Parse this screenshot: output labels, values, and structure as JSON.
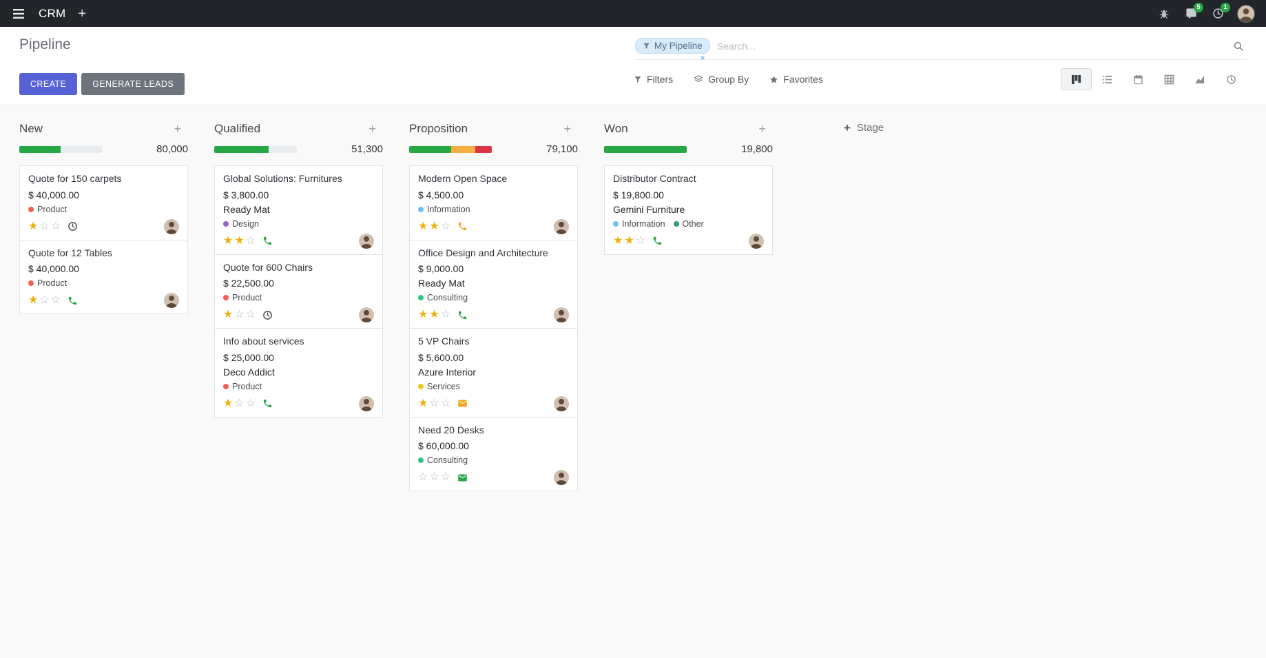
{
  "navbar": {
    "app_name": "CRM",
    "add_label": "+",
    "messages_badge": "5",
    "activities_badge": "1",
    "icons": [
      "hamburger-icon",
      "bug-icon",
      "messages-icon",
      "activities-clock-icon",
      "user-avatar"
    ]
  },
  "control_panel": {
    "title": "Pipeline",
    "create_label": "CREATE",
    "generate_leads_label": "GENERATE LEADS",
    "search": {
      "facet": "My Pipeline",
      "facet_remove": "×",
      "placeholder": "Search..."
    },
    "filters_label": "Filters",
    "group_by_label": "Group By",
    "favorites_label": "Favorites",
    "view_switcher": {
      "active": "kanban",
      "views": [
        "kanban",
        "list",
        "calendar",
        "pivot",
        "graph",
        "activity"
      ]
    }
  },
  "colors": {
    "accent": "#5661d6",
    "success": "#28a745",
    "warning": "#f5ae42",
    "danger": "#dc3545",
    "star_filled": "#edb009"
  },
  "board": {
    "add_stage_label": "Stage",
    "columns": [
      {
        "title": "New",
        "counter": "80,000",
        "progress": [
          {
            "name": "success",
            "color": "#28a745",
            "pct": 50
          }
        ],
        "cards": [
          {
            "title": "Quote for 150 carpets",
            "amount": "$ 40,000.00",
            "partner": "",
            "tags": [
              {
                "label": "Product",
                "color": "#f06050"
              }
            ],
            "stars": 1,
            "activity": {
              "icon": "clock",
              "color": "#495057"
            }
          },
          {
            "title": "Quote for 12 Tables",
            "amount": "$ 40,000.00",
            "partner": "",
            "tags": [
              {
                "label": "Product",
                "color": "#f06050"
              }
            ],
            "stars": 1,
            "activity": {
              "icon": "phone",
              "color": "#28a745"
            }
          }
        ]
      },
      {
        "title": "Qualified",
        "counter": "51,300",
        "progress": [
          {
            "name": "success",
            "color": "#28a745",
            "pct": 66
          }
        ],
        "cards": [
          {
            "title": "Global Solutions: Furnitures",
            "amount": "$ 3,800.00",
            "partner": "Ready Mat",
            "tags": [
              {
                "label": "Design",
                "color": "#9365b8"
              }
            ],
            "stars": 2,
            "activity": {
              "icon": "phone",
              "color": "#28a745"
            }
          },
          {
            "title": "Quote for 600 Chairs",
            "amount": "$ 22,500.00",
            "partner": "",
            "tags": [
              {
                "label": "Product",
                "color": "#f06050"
              }
            ],
            "stars": 1,
            "activity": {
              "icon": "clock",
              "color": "#495057"
            }
          },
          {
            "title": "Info about services",
            "amount": "$ 25,000.00",
            "partner": "Deco Addict",
            "tags": [
              {
                "label": "Product",
                "color": "#f06050"
              }
            ],
            "stars": 1,
            "activity": {
              "icon": "phone",
              "color": "#28a745"
            }
          }
        ]
      },
      {
        "title": "Proposition",
        "counter": "79,100",
        "progress": [
          {
            "name": "success",
            "color": "#28a745",
            "pct": 51
          },
          {
            "name": "warning",
            "color": "#f5ae42",
            "pct": 29
          },
          {
            "name": "danger",
            "color": "#dc3545",
            "pct": 20
          }
        ],
        "cards": [
          {
            "title": "Modern Open Space",
            "amount": "$ 4,500.00",
            "partner": "",
            "tags": [
              {
                "label": "Information",
                "color": "#6cc1ed"
              }
            ],
            "stars": 2,
            "activity": {
              "icon": "phone",
              "color": "#eda81c"
            }
          },
          {
            "title": "Office Design and Architecture",
            "amount": "$ 9,000.00",
            "partner": "Ready Mat",
            "tags": [
              {
                "label": "Consulting",
                "color": "#30c381"
              }
            ],
            "stars": 2,
            "activity": {
              "icon": "phone",
              "color": "#28a745"
            }
          },
          {
            "title": "5 VP Chairs",
            "amount": "$ 5,600.00",
            "partner": "Azure Interior",
            "tags": [
              {
                "label": "Services",
                "color": "#f0c61f"
              }
            ],
            "stars": 1,
            "activity": {
              "icon": "envelope",
              "color": "#eda81c"
            }
          },
          {
            "title": "Need 20 Desks",
            "amount": "$ 60,000.00",
            "partner": "",
            "tags": [
              {
                "label": "Consulting",
                "color": "#30c381"
              }
            ],
            "stars": 0,
            "activity": {
              "icon": "envelope",
              "color": "#28a745"
            }
          }
        ]
      },
      {
        "title": "Won",
        "counter": "19,800",
        "progress": [
          {
            "name": "success",
            "color": "#28a745",
            "pct": 100
          }
        ],
        "cards": [
          {
            "title": "Distributor Contract",
            "amount": "$ 19,800.00",
            "partner": "Gemini Furniture",
            "tags": [
              {
                "label": "Information",
                "color": "#6cc1ed"
              },
              {
                "label": "Other",
                "color": "#2f9e68"
              }
            ],
            "stars": 2,
            "activity": {
              "icon": "phone",
              "color": "#28a745"
            }
          }
        ]
      }
    ]
  }
}
